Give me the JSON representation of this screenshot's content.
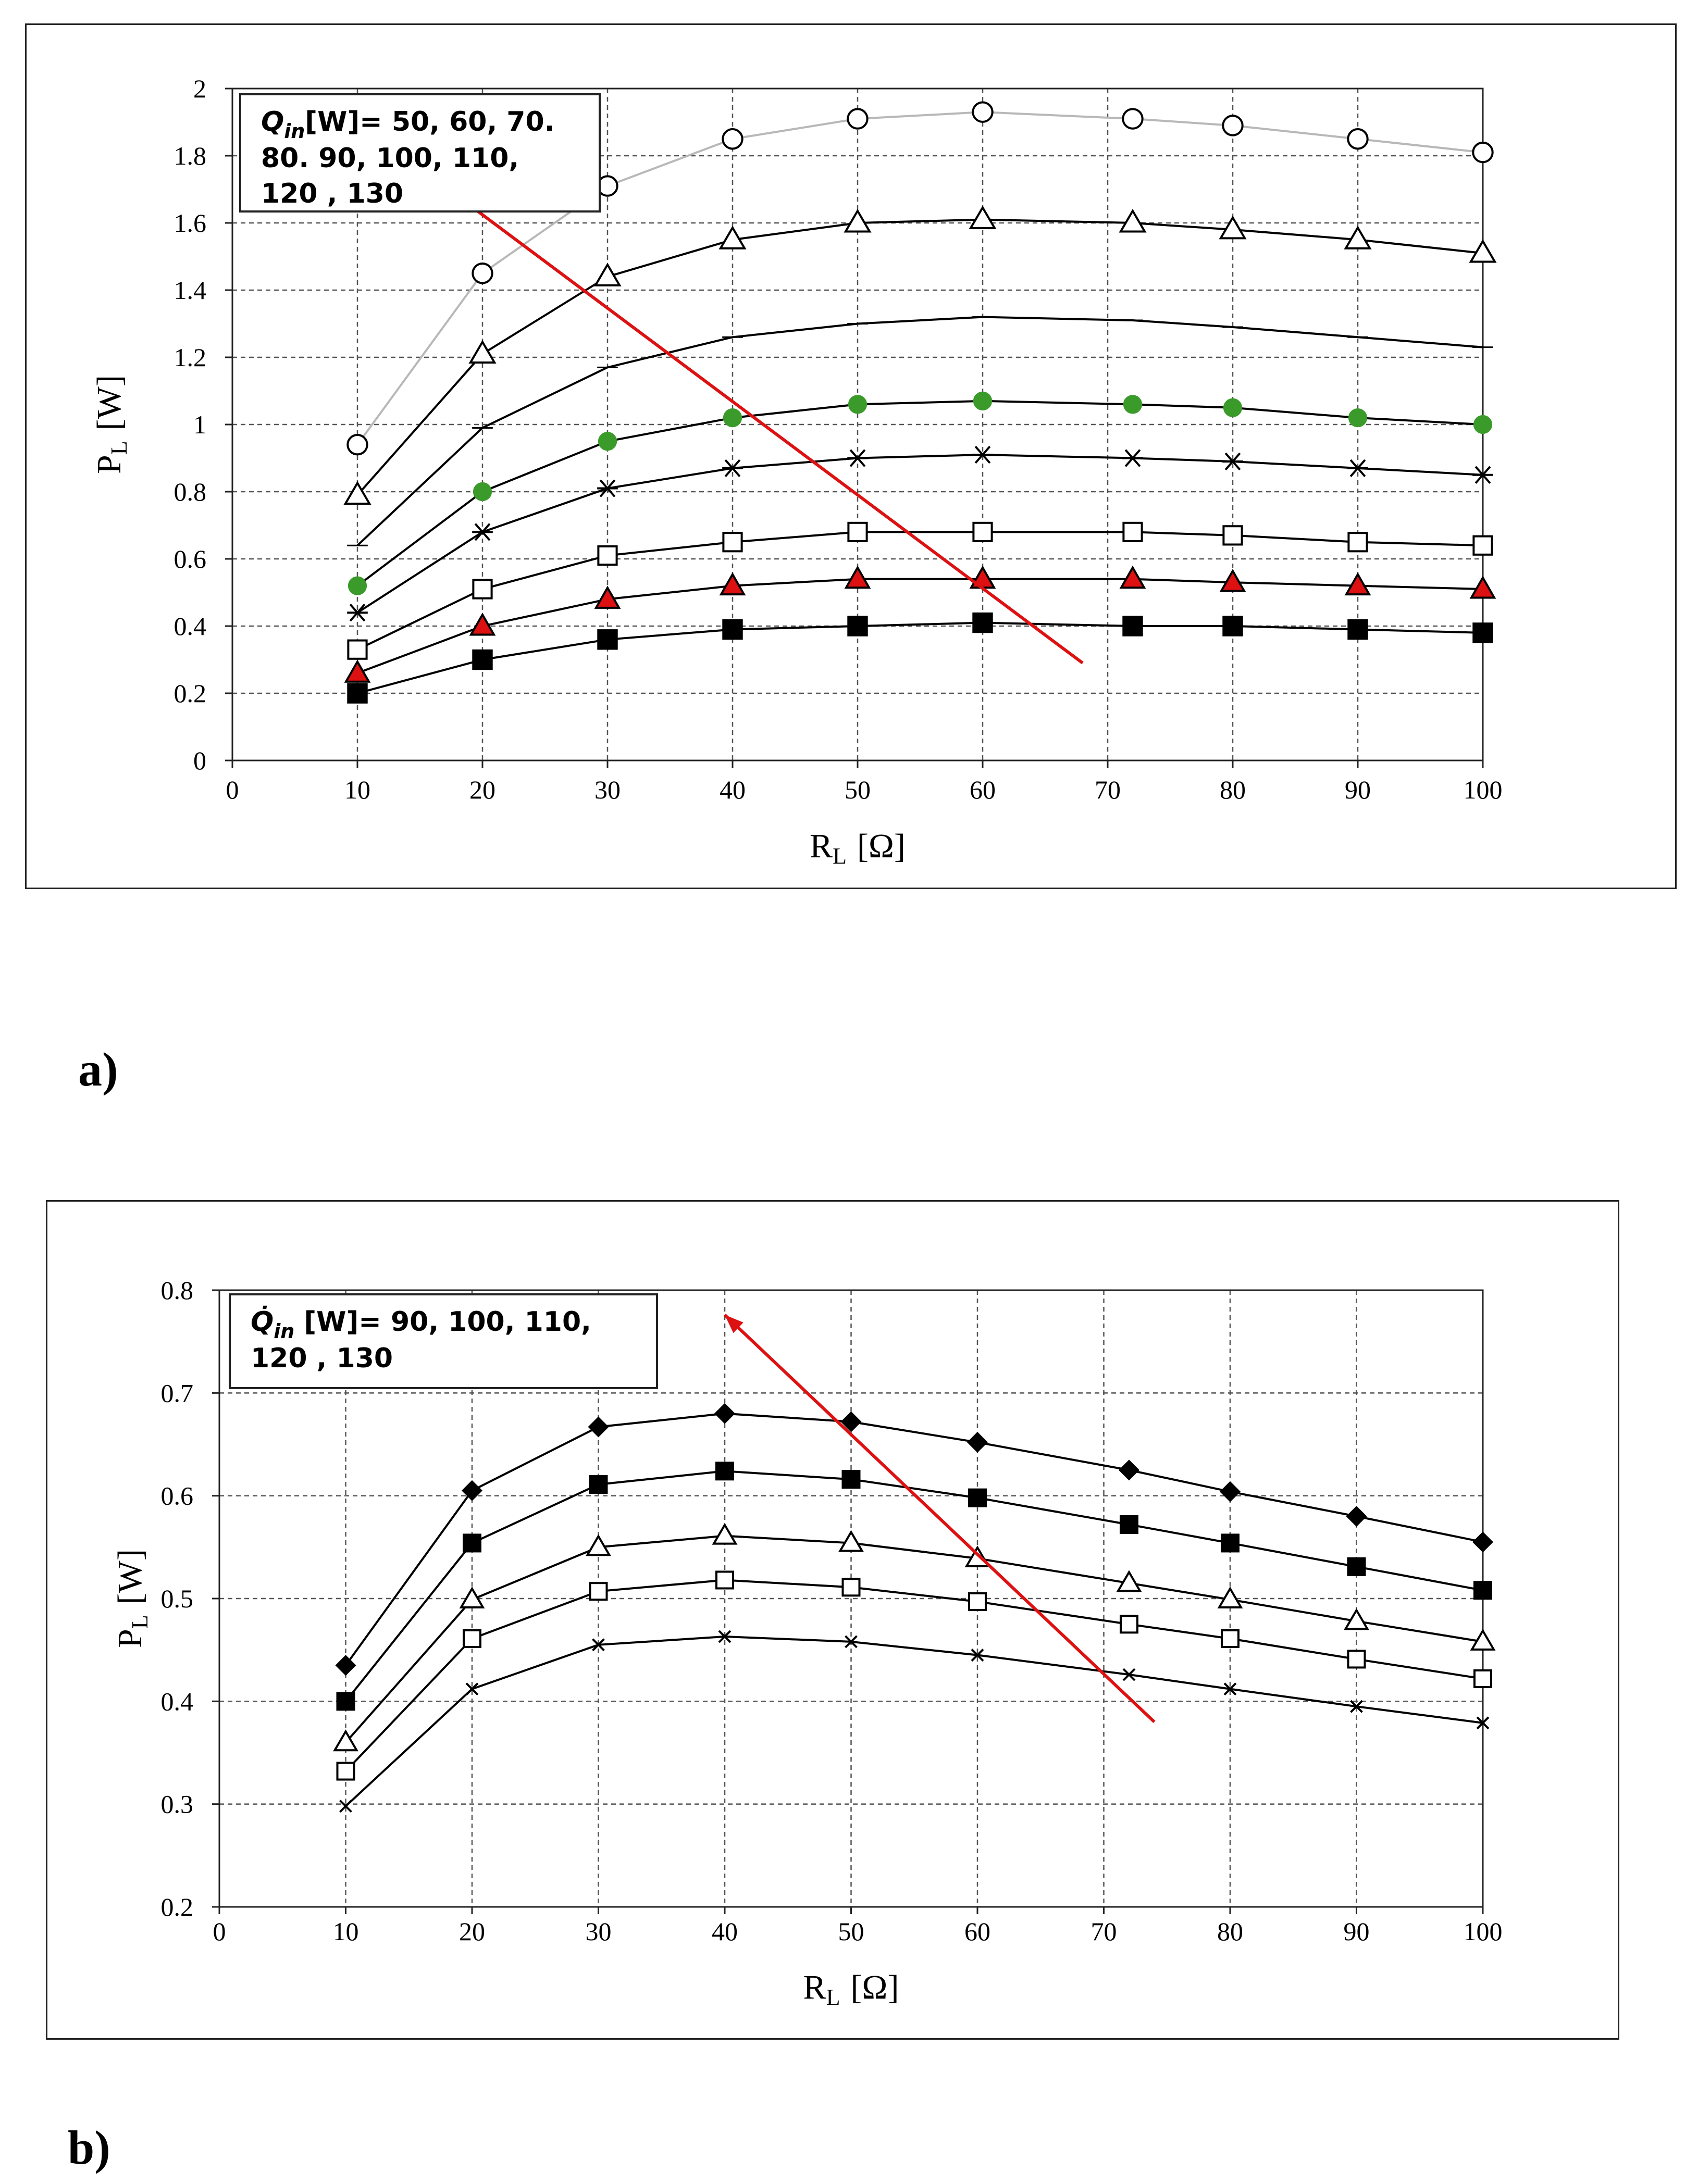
{
  "figure": {
    "caption_a": "a)",
    "caption_b": "b)"
  },
  "chart_data": [
    {
      "id": "a",
      "type": "line",
      "xlabel": "R",
      "xlabel_sub": "L",
      "xlabel_unit": "[Ω]",
      "ylabel": "P",
      "ylabel_sub": "L",
      "ylabel_unit": "[W]",
      "xlim": [
        0,
        100
      ],
      "ylim": [
        0,
        2
      ],
      "xticks": [
        0,
        10,
        20,
        30,
        40,
        50,
        60,
        70,
        80,
        90,
        100
      ],
      "xtick_labels": [
        "0",
        "10",
        "20",
        "30",
        "40",
        "50",
        "60",
        "70",
        "80",
        "90",
        "100"
      ],
      "yticks": [
        0,
        0.2,
        0.4,
        0.6,
        0.8,
        1,
        1.2,
        1.4,
        1.6,
        1.8,
        2
      ],
      "ytick_labels": [
        "0",
        "0.2",
        "0.4",
        "0.6",
        "0.8",
        "1",
        "1.2",
        "1.4",
        "1.6",
        "1.8",
        "2"
      ],
      "grid": true,
      "legend_note": {
        "symbol": "Q",
        "sub": "in",
        "line1": "[W]= 50, 60, 70.",
        "line2": "80. 90, 100, 110,",
        "line3": "120 , 130"
      },
      "arrow": {
        "from": [
          68,
          0.29
        ],
        "to": [
          18,
          1.68
        ],
        "color": "#dd1111"
      },
      "series": [
        {
          "name": "130",
          "marker": "circle-open",
          "color": "#b8b8b8",
          "x": [
            10,
            20,
            30,
            40,
            50,
            60,
            72,
            80,
            90,
            100
          ],
          "y": [
            0.94,
            1.45,
            1.71,
            1.85,
            1.91,
            1.93,
            1.91,
            1.89,
            1.85,
            1.81
          ]
        },
        {
          "name": "120",
          "marker": "triangle-open",
          "color": "#000000",
          "x": [
            10,
            20,
            30,
            40,
            50,
            60,
            72,
            80,
            90,
            100
          ],
          "y": [
            0.79,
            1.21,
            1.44,
            1.55,
            1.6,
            1.61,
            1.6,
            1.58,
            1.55,
            1.51
          ]
        },
        {
          "name": "110",
          "marker": "dash",
          "color": "#000000",
          "x": [
            10,
            20,
            30,
            40,
            50,
            60,
            72,
            80,
            90,
            100
          ],
          "y": [
            0.64,
            0.99,
            1.17,
            1.26,
            1.3,
            1.32,
            1.31,
            1.29,
            1.26,
            1.23
          ]
        },
        {
          "name": "100",
          "marker": "circle-green",
          "color": "#000000",
          "fill": "#3a9a2a",
          "x": [
            10,
            20,
            30,
            40,
            50,
            60,
            72,
            80,
            90,
            100
          ],
          "y": [
            0.52,
            0.8,
            0.95,
            1.02,
            1.06,
            1.07,
            1.06,
            1.05,
            1.02,
            1.0
          ]
        },
        {
          "name": "90",
          "marker": "asterisk",
          "color": "#000000",
          "x": [
            10,
            20,
            30,
            40,
            50,
            60,
            72,
            80,
            90,
            100
          ],
          "y": [
            0.44,
            0.68,
            0.81,
            0.87,
            0.9,
            0.91,
            0.9,
            0.89,
            0.87,
            0.85
          ]
        },
        {
          "name": "80",
          "marker": "square-open",
          "color": "#000000",
          "x": [
            10,
            20,
            30,
            40,
            50,
            60,
            72,
            80,
            90,
            100
          ],
          "y": [
            0.33,
            0.51,
            0.61,
            0.65,
            0.68,
            0.68,
            0.68,
            0.67,
            0.65,
            0.64
          ]
        },
        {
          "name": "70",
          "marker": "triangle-red",
          "color": "#000000",
          "fill": "#dd1111",
          "x": [
            10,
            20,
            30,
            40,
            50,
            60,
            72,
            80,
            90,
            100
          ],
          "y": [
            0.26,
            0.4,
            0.48,
            0.52,
            0.54,
            0.54,
            0.54,
            0.53,
            0.52,
            0.51
          ]
        },
        {
          "name": "60",
          "marker": "square-filled",
          "color": "#000000",
          "x": [
            10,
            20,
            30,
            40,
            50,
            60,
            72,
            80,
            90,
            100
          ],
          "y": [
            0.2,
            0.3,
            0.36,
            0.39,
            0.4,
            0.41,
            0.4,
            0.4,
            0.39,
            0.38
          ]
        }
      ]
    },
    {
      "id": "b",
      "type": "line",
      "xlabel": "R",
      "xlabel_sub": "L",
      "xlabel_unit": "[Ω]",
      "ylabel": "P",
      "ylabel_sub": "L",
      "ylabel_unit": "[W]",
      "xlim": [
        0,
        100
      ],
      "ylim": [
        0.2,
        0.8
      ],
      "xticks": [
        0,
        10,
        20,
        30,
        40,
        50,
        60,
        70,
        80,
        90,
        100
      ],
      "xtick_labels": [
        "0",
        "10",
        "20",
        "30",
        "40",
        "50",
        "60",
        "70",
        "80",
        "90",
        "100"
      ],
      "yticks": [
        0.2,
        0.3,
        0.4,
        0.5,
        0.6,
        0.7,
        0.8
      ],
      "ytick_labels": [
        "0.2",
        "0.3",
        "0.4",
        "0.5",
        "0.6",
        "0.7",
        "0.8"
      ],
      "grid": true,
      "legend_note": {
        "symbol": "Q̇",
        "sub": "in",
        "line1": " [W]= 90, 100, 110,",
        "line2": "120 , 130",
        "line3": ""
      },
      "arrow": {
        "from": [
          74,
          0.38
        ],
        "to": [
          40,
          0.776
        ],
        "color": "#dd1111"
      },
      "series": [
        {
          "name": "130",
          "marker": "diamond-filled",
          "color": "#000000",
          "x": [
            10,
            20,
            30,
            40,
            50,
            60,
            72,
            80,
            90,
            100
          ],
          "y": [
            0.435,
            0.605,
            0.667,
            0.68,
            0.672,
            0.652,
            0.625,
            0.604,
            0.58,
            0.555
          ]
        },
        {
          "name": "120",
          "marker": "square-filled",
          "color": "#000000",
          "x": [
            10,
            20,
            30,
            40,
            50,
            60,
            72,
            80,
            90,
            100
          ],
          "y": [
            0.4,
            0.554,
            0.611,
            0.624,
            0.616,
            0.598,
            0.572,
            0.554,
            0.531,
            0.508
          ]
        },
        {
          "name": "110",
          "marker": "triangle-open",
          "color": "#000000",
          "x": [
            10,
            20,
            30,
            40,
            50,
            60,
            72,
            80,
            90,
            100
          ],
          "y": [
            0.36,
            0.499,
            0.55,
            0.561,
            0.554,
            0.539,
            0.515,
            0.499,
            0.478,
            0.458
          ]
        },
        {
          "name": "100",
          "marker": "square-open",
          "color": "#000000",
          "x": [
            10,
            20,
            30,
            40,
            50,
            60,
            72,
            80,
            90,
            100
          ],
          "y": [
            0.332,
            0.461,
            0.507,
            0.518,
            0.511,
            0.497,
            0.475,
            0.461,
            0.441,
            0.422
          ]
        },
        {
          "name": "90",
          "marker": "x-cross",
          "color": "#000000",
          "x": [
            10,
            20,
            30,
            40,
            50,
            60,
            72,
            80,
            90,
            100
          ],
          "y": [
            0.298,
            0.412,
            0.455,
            0.463,
            0.458,
            0.445,
            0.426,
            0.412,
            0.395,
            0.379
          ]
        }
      ]
    }
  ]
}
